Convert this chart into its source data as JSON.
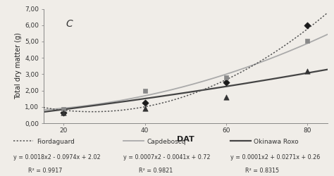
{
  "title": "C",
  "xlabel": "DAT",
  "ylabel": "Total dry matter (g)",
  "xlim": [
    15,
    85
  ],
  "ylim": [
    0.0,
    7.0
  ],
  "yticks": [
    0.0,
    1.0,
    2.0,
    3.0,
    4.0,
    5.0,
    6.0,
    7.0
  ],
  "ytick_labels": [
    "0,00",
    "1,00",
    "2,00",
    "3,00",
    "4,00",
    "5,00",
    "6,00",
    "7,00"
  ],
  "xticks": [
    20,
    40,
    60,
    80
  ],
  "series": [
    {
      "name": "Fiordaguard",
      "eq": {
        "a": 0.0018,
        "b": -0.0974,
        "c": 2.02
      },
      "r2": "0.9917",
      "linestyle": "dotted",
      "color": "#555555",
      "marker": "D",
      "marker_color": "#1a1a1a",
      "data_x": [
        20,
        40,
        60,
        80
      ],
      "data_y": [
        0.65,
        1.25,
        2.5,
        6.0
      ]
    },
    {
      "name": "Capdeboscq",
      "eq": {
        "a": 0.0007,
        "b": -0.0041,
        "c": 0.72
      },
      "r2": "0.9821",
      "linestyle": "solid",
      "color": "#aaaaaa",
      "marker": "s",
      "marker_color": "#888888",
      "data_x": [
        20,
        40,
        60,
        80
      ],
      "data_y": [
        0.85,
        2.0,
        2.8,
        5.05
      ]
    },
    {
      "name": "Okinawa Roxo",
      "eq": {
        "a": 0.0001,
        "b": 0.0271,
        "c": 0.26
      },
      "r2": "0.8315",
      "linestyle": "solid",
      "color": "#444444",
      "marker": "^",
      "marker_color": "#333333",
      "data_x": [
        20,
        40,
        60,
        80
      ],
      "data_y": [
        0.63,
        0.9,
        1.6,
        3.2
      ]
    }
  ],
  "legend_eq": [
    "y = 0.0018x2 - 0.0974x + 2.02",
    "y = 0.0007x2 - 0.0041x + 0.72",
    "y = 0.0001x2 + 0.0271x + 0.26"
  ],
  "legend_r2": [
    "R² = 0.9917",
    "R² = 0.9821",
    "R² = 0.8315"
  ],
  "bg_color": "#f0ede8"
}
